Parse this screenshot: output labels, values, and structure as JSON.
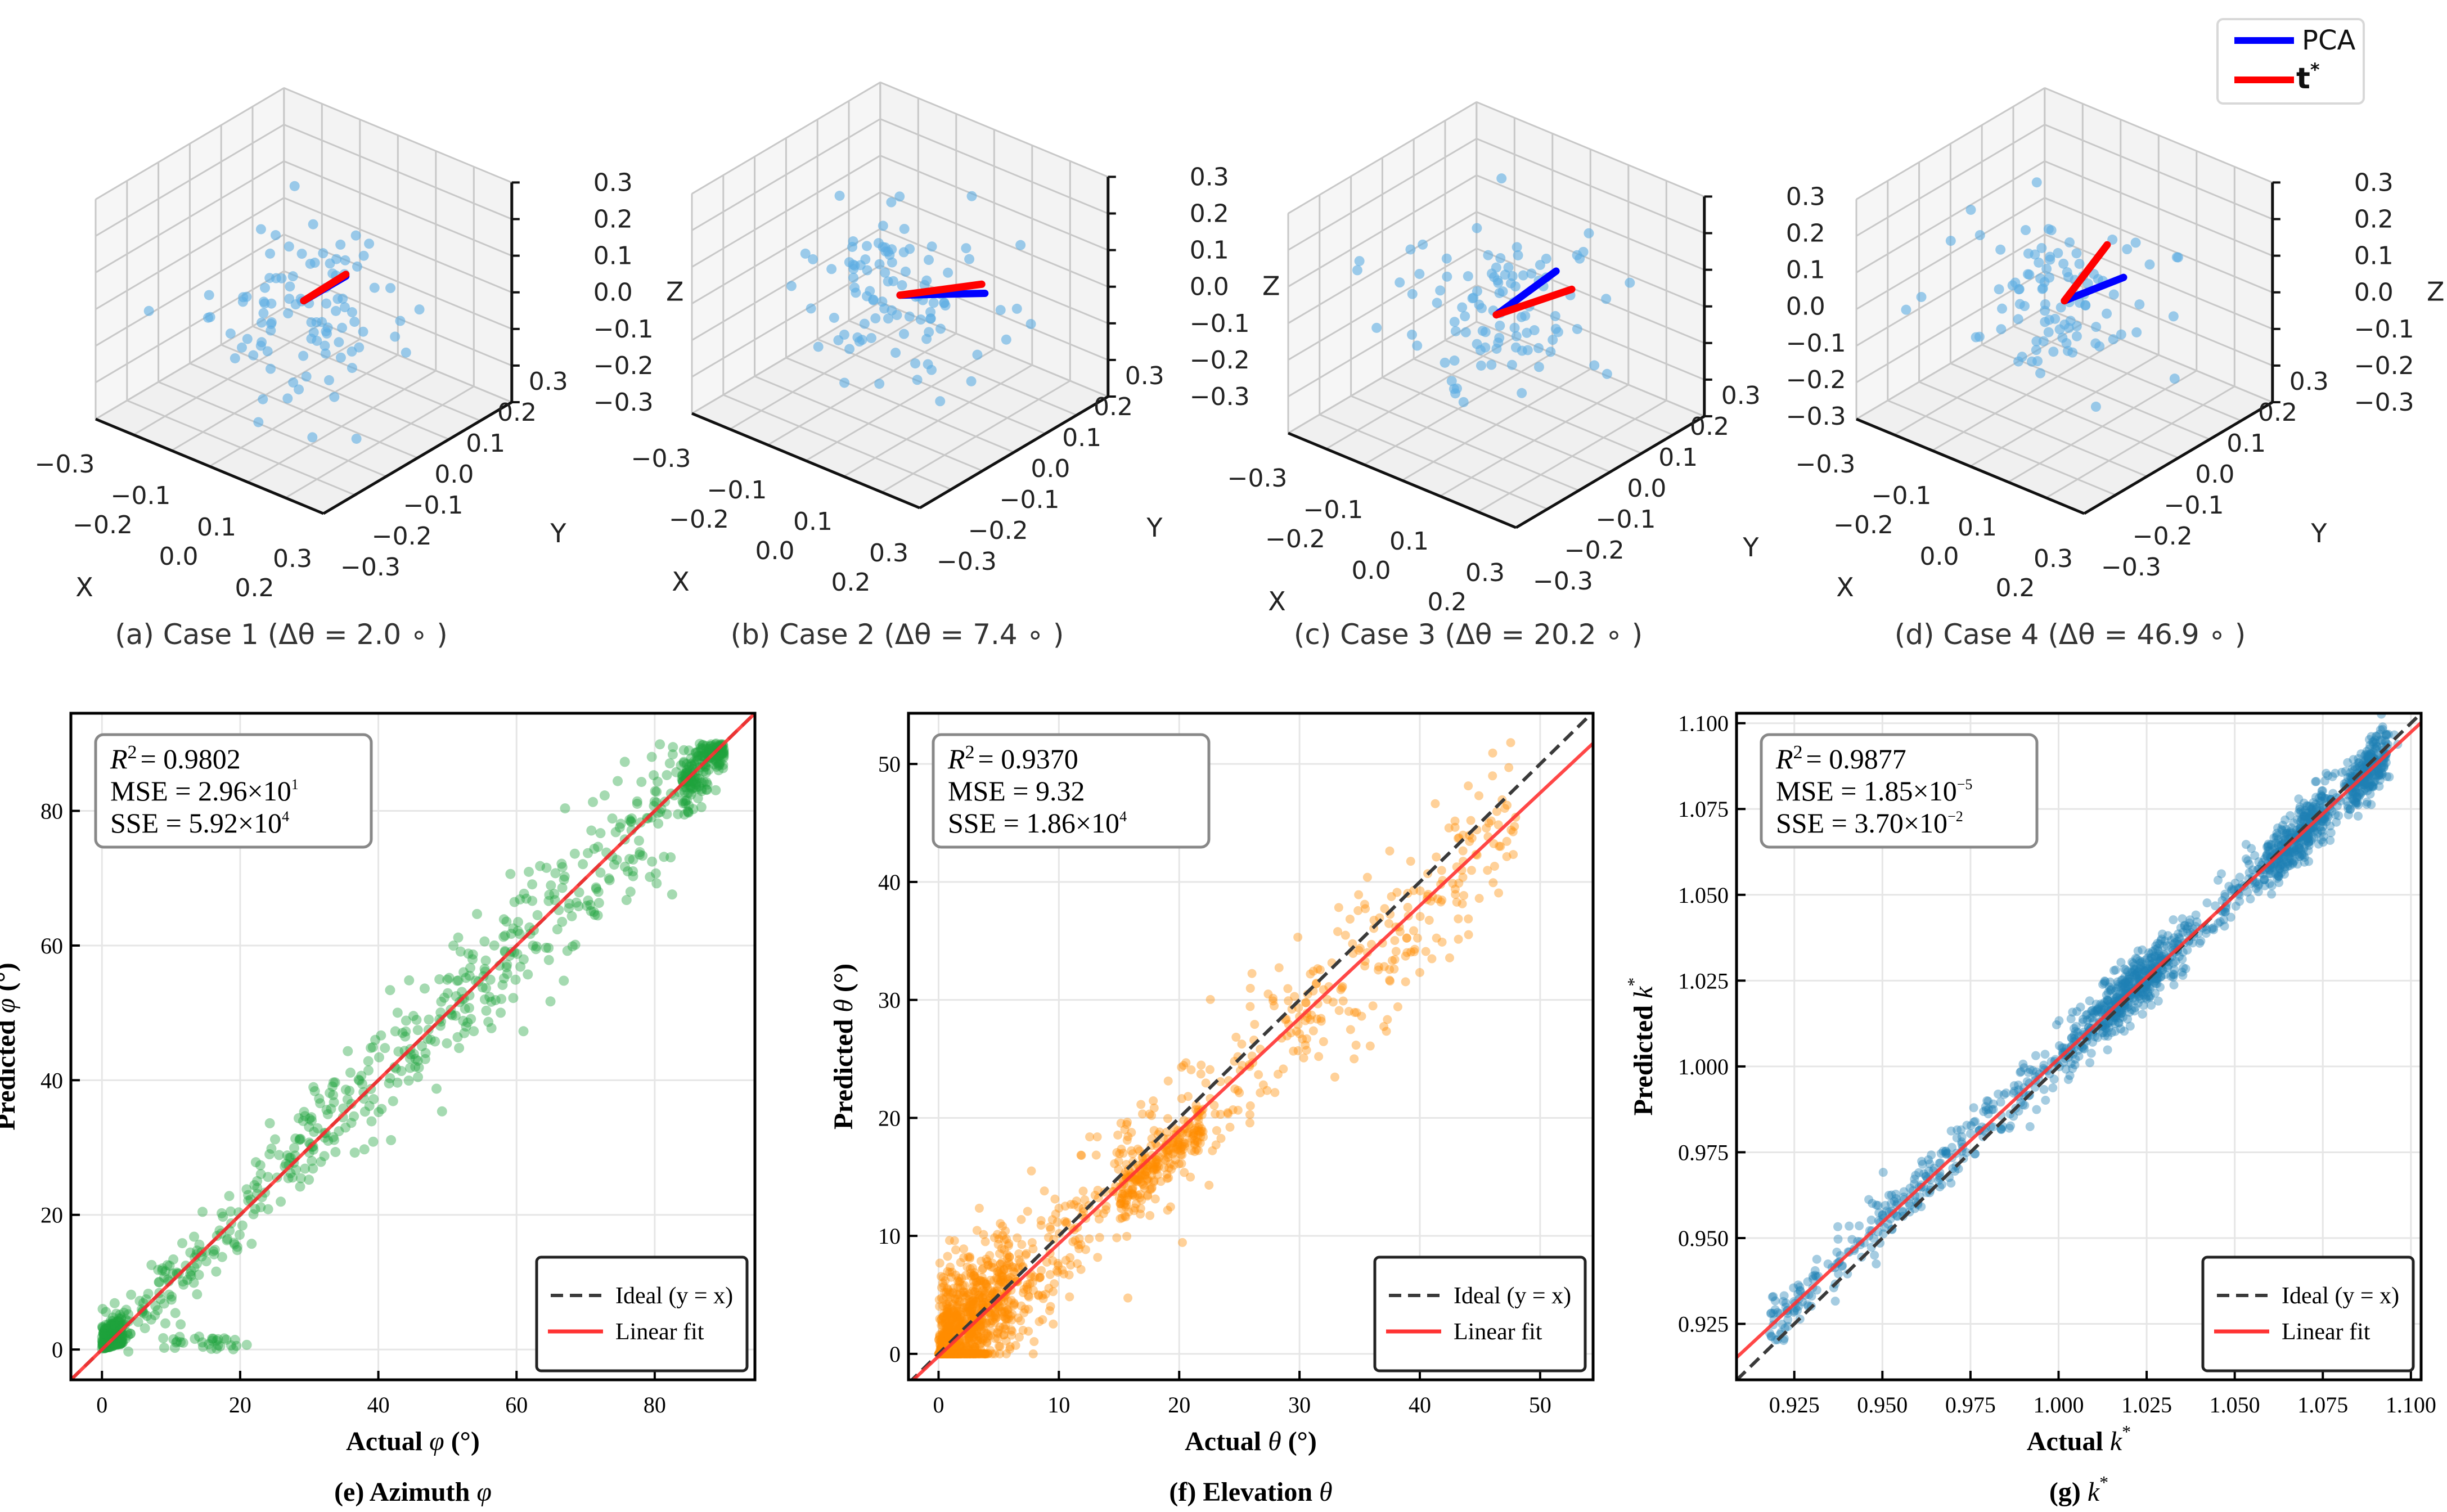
{
  "legend3d": {
    "items": [
      {
        "label": "PCA",
        "color": "#0000ff"
      },
      {
        "label": "t",
        "sup": "*",
        "color": "#ff0000"
      }
    ]
  },
  "chart_data": [
    {
      "type": "scatter3d",
      "caption": "(a) Case 1 (Δθ = 2.0 ∘ )",
      "delta_theta_deg": 2.0,
      "xlabel": "X",
      "ylabel": "Y",
      "zlabel": "Z",
      "lim": [
        -0.3,
        0.3
      ],
      "ticks": [
        "−0.3",
        "−0.2",
        "−0.1",
        "0.0",
        "0.1",
        "0.2",
        "0.3"
      ],
      "pca": [
        0.02,
        0.11,
        0.02
      ],
      "t_star": [
        0.02,
        0.11,
        0.025
      ],
      "n_points": 100,
      "point_color": "#5dade2"
    },
    {
      "type": "scatter3d",
      "caption": "(b) Case 2 (Δθ = 7.4 ∘ )",
      "delta_theta_deg": 7.4,
      "xlabel": "X",
      "ylabel": "Y",
      "zlabel": "Z",
      "lim": [
        -0.3,
        0.3
      ],
      "ticks": [
        "−0.3",
        "−0.2",
        "−0.1",
        "0.0",
        "0.1",
        "0.2",
        "0.3"
      ],
      "pca": [
        0.05,
        0.21,
        -0.08
      ],
      "t_star": [
        0.05,
        0.2,
        -0.05
      ],
      "n_points": 100,
      "point_color": "#5dade2"
    },
    {
      "type": "scatter3d",
      "caption": "(c) Case 3 (Δθ = 20.2 ∘ )",
      "delta_theta_deg": 20.2,
      "xlabel": "X",
      "ylabel": "Y",
      "zlabel": "Z",
      "lim": [
        -0.3,
        0.3
      ],
      "ticks": [
        "−0.3",
        "−0.2",
        "−0.1",
        "0.0",
        "0.1",
        "0.2",
        "0.3"
      ],
      "pca": [
        0.05,
        0.13,
        0.075
      ],
      "t_star": [
        0.05,
        0.18,
        0.0
      ],
      "n_points": 100,
      "point_color": "#5dade2"
    },
    {
      "type": "scatter3d",
      "caption": "(d) Case 4 (Δθ = 46.9 ∘ )",
      "delta_theta_deg": 46.9,
      "xlabel": "X",
      "ylabel": "Y",
      "zlabel": "Z",
      "lim": [
        -0.3,
        0.3
      ],
      "ticks": [
        "−0.3",
        "−0.2",
        "−0.1",
        "0.0",
        "0.1",
        "0.2",
        "0.3"
      ],
      "pca": [
        0.04,
        0.14,
        0.01
      ],
      "t_star": [
        0.03,
        0.1,
        0.115
      ],
      "n_points": 100,
      "point_color": "#5dade2"
    },
    {
      "type": "scatter",
      "caption": [
        "(e) Azimuth ",
        "φ"
      ],
      "xlabel": [
        "Actual ",
        "φ",
        " (°)"
      ],
      "ylabel": [
        "Predicted ",
        "φ",
        " (°)"
      ],
      "xlim": [
        -4.5,
        94.5
      ],
      "ylim": [
        -4.5,
        94.5
      ],
      "xticks": [
        0,
        20,
        40,
        60,
        80
      ],
      "xtick_labels": [
        "0",
        "20",
        "40",
        "60",
        "80"
      ],
      "yticks": [
        0,
        20,
        40,
        60,
        80
      ],
      "ytick_labels": [
        "0",
        "20",
        "40",
        "60",
        "80"
      ],
      "stats": {
        "r2_label": "R",
        "r2_value": "= 0.9802",
        "mse": "MSE =  2.96×10",
        "mse_exp": "1",
        "sse": "SSE = 5.92×10",
        "sse_exp": "4"
      },
      "fit": {
        "slope": 1.0,
        "intercept": 0.0
      },
      "legend": {
        "ideal": "Ideal (y = x)",
        "fit": "Linear fit",
        "location": "lower-right"
      },
      "n_points": 1000,
      "point_color": "#1fa33c",
      "grid": true
    },
    {
      "type": "scatter",
      "caption": [
        "(f) Elevation ",
        "θ"
      ],
      "xlabel": [
        "Actual ",
        "θ",
        " (°)"
      ],
      "ylabel": [
        "Predicted ",
        "θ",
        " (°)"
      ],
      "xlim": [
        -2.5,
        54.4
      ],
      "ylim": [
        -2.2,
        54.3
      ],
      "xticks": [
        0,
        10,
        20,
        30,
        40,
        50
      ],
      "xtick_labels": [
        "0",
        "10",
        "20",
        "30",
        "40",
        "50"
      ],
      "yticks": [
        0,
        10,
        20,
        30,
        40,
        50
      ],
      "ytick_labels": [
        "0",
        "10",
        "20",
        "30",
        "40",
        "50"
      ],
      "stats": {
        "r2_label": "R",
        "r2_value": "= 0.9370",
        "mse": "MSE = 9.32",
        "mse_exp": "",
        "sse": "SSE = 1.86×10",
        "sse_exp": "4"
      },
      "fit": {
        "slope": 0.955,
        "intercept": -0.2
      },
      "legend": {
        "ideal": "Ideal (y = x)",
        "fit": "Linear fit",
        "location": "lower-right"
      },
      "n_points": 1500,
      "point_color": "#ff8c00",
      "grid": true
    },
    {
      "type": "scatter",
      "caption": [
        "(g) ",
        "k",
        "*"
      ],
      "xlabel": [
        "Actual ",
        "k",
        "*"
      ],
      "ylabel": [
        "Predicted ",
        "k",
        "*"
      ],
      "xlim": [
        0.9086,
        1.1029
      ],
      "ylim": [
        0.9087,
        1.1029
      ],
      "xticks": [
        0.925,
        0.95,
        0.975,
        1.0,
        1.025,
        1.05,
        1.075,
        1.1
      ],
      "xtick_labels": [
        "0.925",
        "0.950",
        "0.975",
        "1.000",
        "1.025",
        "1.050",
        "1.075",
        "1.100"
      ],
      "yticks": [
        0.925,
        0.95,
        0.975,
        1.0,
        1.025,
        1.05,
        1.075,
        1.1
      ],
      "ytick_labels": [
        "0.925",
        "0.950",
        "0.975",
        "1.000",
        "1.025",
        "1.050",
        "1.075",
        "1.100"
      ],
      "stats": {
        "r2_label": "R",
        "r2_value": "= 0.9877",
        "mse": "MSE = 1.85×10",
        "mse_exp": "−5",
        "sse": "SSE =  3.70×10",
        "sse_exp": "−2"
      },
      "fit": {
        "slope": 0.952,
        "intercept": 0.0502
      },
      "legend": {
        "ideal": "Ideal (y = x)",
        "fit": "Linear fit",
        "location": "lower-right"
      },
      "n_points": 1500,
      "point_color": "#1f7fb4",
      "grid": true
    }
  ]
}
